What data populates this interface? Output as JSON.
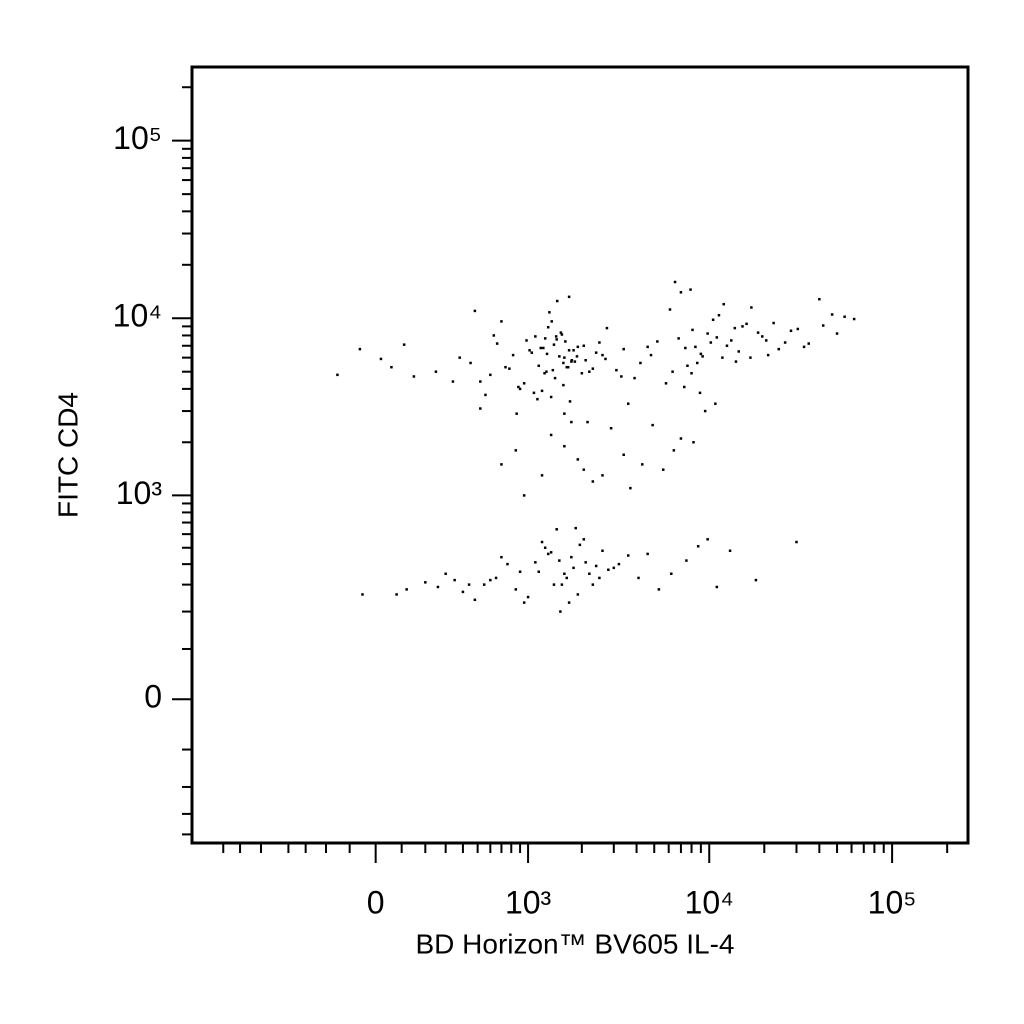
{
  "chart_data": {
    "type": "scatter",
    "xlabel": "BD Horizon™ BV605 IL-4",
    "ylabel": "FITC CD4",
    "xscale": "biexponential",
    "yscale": "biexponential",
    "color": "#000000",
    "xlim": [
      -1500,
      260000
    ],
    "ylim": [
      -450,
      260000
    ],
    "xticks": [
      0,
      {
        "value": 1000,
        "label": "10³"
      },
      {
        "value": 10000,
        "label": "10⁴"
      },
      {
        "value": 100000,
        "label": "10⁵"
      }
    ],
    "yticks": [
      0,
      {
        "value": 1000,
        "label": "10³"
      },
      {
        "value": 10000,
        "label": "10⁴"
      },
      {
        "value": 100000,
        "label": "10⁵"
      }
    ],
    "xminorticks": [
      -1000,
      -800,
      -600,
      -400,
      -300,
      -200,
      -100,
      100,
      200,
      300,
      400,
      500,
      600,
      700,
      800,
      900,
      2000,
      3000,
      4000,
      5000,
      6000,
      7000,
      8000,
      9000,
      20000,
      30000,
      40000,
      50000,
      60000,
      70000,
      80000,
      90000,
      200000
    ],
    "yminorticks": [
      -400,
      -300,
      -200,
      -100,
      100,
      200,
      300,
      400,
      500,
      600,
      700,
      800,
      900,
      2000,
      3000,
      4000,
      5000,
      6000,
      7000,
      8000,
      9000,
      20000,
      30000,
      40000,
      50000,
      60000,
      70000,
      80000,
      90000,
      200000
    ],
    "x": [
      820,
      1150,
      1400,
      1700,
      2100,
      950,
      1300,
      1600,
      2500,
      3100,
      600,
      450,
      700,
      1200,
      1900,
      2300,
      1450,
      1050,
      880,
      1750,
      5200,
      7400,
      9800,
      12500,
      16000,
      21000,
      8600,
      6100,
      11000,
      14500,
      28000,
      35000,
      42000,
      55000,
      3900,
      4600,
      1350,
      1550,
      1650,
      1250,
      1500,
      1800,
      1380,
      1620,
      1220,
      2000,
      1100,
      1580,
      1720,
      1280,
      900,
      2700,
      3400,
      780,
      660,
      520,
      380,
      250,
      150,
      60,
      6800,
      8100,
      9200,
      10500,
      13200,
      18500,
      24000,
      7600,
      5800,
      11800,
      15200,
      19500,
      30500,
      47000,
      62000,
      9500,
      12000,
      7000,
      8400,
      10200,
      1420,
      1680,
      1530,
      1880,
      2200,
      1180,
      1320,
      2400,
      980,
      1080,
      1460,
      1600,
      1760,
      2050,
      1240,
      1360,
      2600,
      3600,
      4200,
      520,
      -150,
      -60,
      20,
      110,
      340,
      480,
      560,
      630,
      740,
      860,
      1020,
      1130,
      1270,
      1440,
      1580,
      1830,
      2150,
      2750,
      3300,
      4800,
      6300,
      7300,
      8900,
      13800,
      17000,
      22500,
      26000,
      33000,
      40000,
      50000,
      7900,
      9000,
      11300,
      16800,
      20500,
      14000,
      8000,
      10800,
      6500,
      1700,
      700,
      1200,
      1600,
      2300,
      3400,
      5600,
      7000,
      2900,
      850,
      1900,
      4300,
      950,
      2600,
      3700,
      6400,
      1350,
      1750,
      2050,
      4900,
      8200,
      1500,
      1800,
      1300,
      2200,
      1100,
      2600,
      1650,
      1950,
      1400,
      2400,
      900,
      700,
      550,
      400,
      300,
      200,
      80,
      3200,
      4100,
      5300,
      1250,
      1550,
      1750,
      2050,
      1150,
      1000,
      2800,
      3600,
      850,
      650,
      480,
      350,
      1450,
      1700,
      2300,
      7500,
      9800,
      13000,
      18000,
      30000,
      1600,
      1350,
      1900,
      2100,
      1200,
      2500,
      950,
      760,
      600,
      440,
      260,
      120,
      -50,
      3000,
      4600,
      6200,
      8700,
      11000,
      1850,
      1520
    ],
    "values": [
      6200,
      5400,
      7100,
      6600,
      5800,
      4300,
      8900,
      6000,
      7300,
      5100,
      4800,
      5600,
      9600,
      3900,
      6900,
      5200,
      7600,
      6400,
      4100,
      5700,
      7400,
      6800,
      8200,
      7000,
      9300,
      6200,
      5600,
      11200,
      7800,
      6500,
      8500,
      7200,
      9100,
      10200,
      4600,
      6900,
      3600,
      8100,
      5300,
      7700,
      6100,
      6600,
      5100,
      7400,
      6800,
      4900,
      7900,
      5600,
      3400,
      6300,
      4000,
      5900,
      6700,
      5200,
      7200,
      4400,
      6000,
      5000,
      4700,
      5300,
      7700,
      8600,
      6100,
      9800,
      7500,
      8300,
      6700,
      5400,
      4300,
      6000,
      9000,
      7900,
      8700,
      10500,
      9900,
      3000,
      12000,
      14000,
      6900,
      7300,
      4600,
      5300,
      8300,
      6100,
      5000,
      6800,
      10800,
      6400,
      7500,
      3800,
      12500,
      2900,
      5800,
      7000,
      4900,
      9600,
      6200,
      3300,
      5600,
      3100,
      4800,
      6700,
      5900,
      7100,
      4400,
      11000,
      3700,
      8000,
      5300,
      2900,
      6600,
      3500,
      5000,
      7900,
      4200,
      5700,
      2600,
      8800,
      4700,
      6200,
      5000,
      4100,
      3800,
      8800,
      11500,
      9400,
      7300,
      6900,
      12800,
      8200,
      14500,
      6300,
      10400,
      6000,
      7500,
      5700,
      4900,
      3300,
      16000,
      13200,
      1500,
      1300,
      1900,
      1200,
      1700,
      1400,
      2100,
      2400,
      1800,
      1600,
      1500,
      1000,
      1300,
      1100,
      1800,
      2200,
      2600,
      1400,
      2500,
      2000,
      420,
      380,
      460,
      350,
      410,
      480,
      330,
      520,
      300,
      390,
      360,
      440,
      300,
      270,
      350,
      310,
      260,
      400,
      330,
      280,
      500,
      300,
      440,
      560,
      360,
      250,
      370,
      450,
      280,
      330,
      240,
      320,
      640,
      230,
      300,
      420,
      560,
      480,
      320,
      540,
      350,
      470,
      260,
      410,
      540,
      330,
      230,
      400,
      320,
      300,
      290,
      280,
      260,
      380,
      460,
      350,
      510,
      290,
      650,
      200
    ]
  }
}
